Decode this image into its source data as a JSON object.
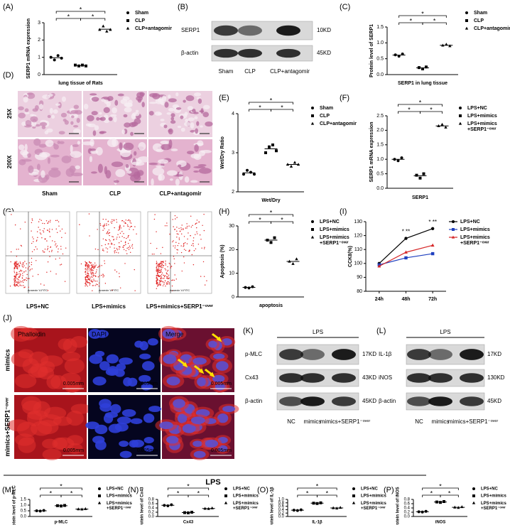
{
  "chart_data": [
    {
      "panel": "(A)",
      "type": "dot",
      "ylabel": "SERP1 mRNA expression",
      "xlabel": "lung tissue of Rats",
      "ylim": [
        0,
        3
      ],
      "yticks": [
        0,
        1,
        2,
        3
      ],
      "significance": [
        "*",
        "*",
        "*"
      ],
      "series": [
        {
          "name": "Sham",
          "marker": "circle",
          "color": "#000000",
          "values": [
            1.0,
            0.85,
            1.1,
            0.95
          ]
        },
        {
          "name": "CLP",
          "marker": "square",
          "color": "#000000",
          "values": [
            0.55,
            0.5,
            0.55,
            0.5
          ]
        },
        {
          "name": "CLP+antagomir",
          "marker": "triangle",
          "color": "#000000",
          "values": [
            2.6,
            2.8,
            2.5,
            2.6
          ]
        }
      ]
    },
    {
      "panel": "(C)",
      "type": "dot",
      "ylabel": "Protein level of SERP1",
      "xlabel": "SERP1 in lung tissue",
      "ylim": [
        0,
        1.5
      ],
      "yticks": [
        {
          "value": 0,
          "label": "0.0"
        },
        0.5,
        {
          "value": 1,
          "label": "1.0"
        },
        1.5
      ],
      "significance": [
        "*",
        "*",
        "*"
      ],
      "series": [
        {
          "name": "Sham",
          "marker": "circle",
          "color": "#000000",
          "values": [
            0.62,
            0.58,
            0.65
          ]
        },
        {
          "name": "CLP",
          "marker": "square",
          "color": "#000000",
          "values": [
            0.22,
            0.18,
            0.24
          ]
        },
        {
          "name": "CLP+antagomir",
          "marker": "triangle",
          "color": "#000000",
          "values": [
            0.92,
            0.95,
            0.9
          ]
        }
      ]
    },
    {
      "panel": "(E)",
      "type": "dot",
      "ylabel": "Wet/Dry Ratio",
      "xlabel": "Wet/Dry",
      "ylim": [
        2,
        4
      ],
      "yticks": [
        2,
        3,
        4
      ],
      "significance": [
        "*",
        "*",
        "*"
      ],
      "series": [
        {
          "name": "Sham",
          "marker": "circle",
          "color": "#000000",
          "values": [
            2.45,
            2.55,
            2.5,
            2.45
          ]
        },
        {
          "name": "CLP",
          "marker": "square",
          "color": "#000000",
          "values": [
            3.0,
            3.15,
            3.2,
            3.05
          ]
        },
        {
          "name": "CLP+antagomir",
          "marker": "triangle",
          "color": "#000000",
          "values": [
            2.7,
            2.65,
            2.75,
            2.7
          ]
        }
      ]
    },
    {
      "panel": "(F)",
      "type": "dot",
      "ylabel": "SERP1 mRNA expression",
      "xlabel": "SERP1",
      "ylim": [
        0,
        2.5
      ],
      "yticks": [
        {
          "value": 0,
          "label": "0.0"
        },
        0.5,
        {
          "value": 1,
          "label": "1.0"
        },
        1.5,
        {
          "value": 2,
          "label": "2.0"
        },
        2.5
      ],
      "significance": [
        "*",
        "*",
        "*"
      ],
      "series": [
        {
          "name": "LPS+NC",
          "marker": "circle",
          "color": "#000000",
          "values": [
            1.0,
            0.95,
            1.05
          ]
        },
        {
          "name": "LPS+mimics",
          "marker": "square",
          "color": "#000000",
          "values": [
            0.45,
            0.35,
            0.5
          ]
        },
        {
          "name": "LPS+mimics +SERP1⁻ᵒᵛᵉʳ",
          "marker": "triangle",
          "color": "#000000",
          "values": [
            2.15,
            2.2,
            2.1
          ]
        }
      ]
    },
    {
      "panel": "(H)",
      "type": "dot",
      "ylabel": "Apoptosis (%)",
      "xlabel": "apoptosis",
      "ylim": [
        0,
        30
      ],
      "yticks": [
        0,
        10,
        20,
        30
      ],
      "significance": [
        "*",
        "*",
        "*"
      ],
      "series": [
        {
          "name": "LPS+NC",
          "marker": "circle",
          "color": "#000000",
          "values": [
            4,
            3.8,
            4.3
          ]
        },
        {
          "name": "LPS+mimics",
          "marker": "square",
          "color": "#000000",
          "values": [
            24,
            23,
            25
          ]
        },
        {
          "name": "LPS+mimics +SERP1⁻ᵒᵛᵉʳ",
          "marker": "triangle",
          "color": "#000000",
          "values": [
            15,
            14,
            16
          ]
        }
      ]
    },
    {
      "panel": "(I)",
      "type": "line",
      "ylabel": "CCK8(%)",
      "categories": [
        "24h",
        "48h",
        "72h"
      ],
      "ylim": [
        80,
        130
      ],
      "yticks": [
        80,
        90,
        100,
        110,
        120,
        130
      ],
      "annotations": [
        {
          "x": "48h",
          "text": "* **"
        },
        {
          "x": "72h",
          "text": "* **"
        }
      ],
      "series": [
        {
          "name": "LPS+NC",
          "marker": "circle",
          "color": "#000000",
          "values": [
            100,
            118,
            125
          ]
        },
        {
          "name": "LPS+mimics",
          "marker": "square",
          "color": "#1f3fbf",
          "values": [
            99,
            104,
            107
          ]
        },
        {
          "name": "LPS+mimics +SERP1⁻ᵒᵛᵉʳ",
          "marker": "triangle",
          "color": "#d62728",
          "values": [
            98,
            108,
            113
          ]
        }
      ]
    },
    {
      "panel": "(M)",
      "type": "dot",
      "ylabel": "Protein level of p-MLC",
      "xlabel": "p-MLC",
      "ylim": [
        0,
        1.5
      ],
      "yticks": [
        {
          "value": 0,
          "label": "0.0"
        },
        0.5,
        {
          "value": 1,
          "label": "1.0"
        },
        1.5
      ],
      "significance": [
        "*",
        "*",
        "*"
      ],
      "series": [
        {
          "name": "LPS+NC",
          "marker": "circle",
          "color": "#000000",
          "values": [
            0.5,
            0.48,
            0.53
          ]
        },
        {
          "name": "LPS+mimics",
          "marker": "square",
          "color": "#000000",
          "values": [
            0.95,
            0.92,
            0.97
          ]
        },
        {
          "name": "LPS+mimics +SERP1⁻ᵒᵛᵉʳ",
          "marker": "triangle",
          "color": "#000000",
          "values": [
            0.65,
            0.63,
            0.67
          ]
        }
      ]
    },
    {
      "panel": "(N)",
      "type": "dot",
      "ylabel": "Protein level of Cx43",
      "xlabel": "Cx43",
      "ylim": [
        0,
        0.8
      ],
      "yticks": [
        {
          "value": 0,
          "label": "0.0"
        },
        0.2,
        0.4,
        0.6,
        0.8
      ],
      "significance": [
        "*",
        "*",
        "*"
      ],
      "series": [
        {
          "name": "LPS+NC",
          "marker": "circle",
          "color": "#000000",
          "values": [
            0.52,
            0.5,
            0.55
          ]
        },
        {
          "name": "LPS+mimics",
          "marker": "square",
          "color": "#000000",
          "values": [
            0.18,
            0.17,
            0.2
          ]
        },
        {
          "name": "LPS+mimics +SERP1⁻ᵒᵛᵉʳ",
          "marker": "triangle",
          "color": "#000000",
          "values": [
            0.37,
            0.36,
            0.39
          ]
        }
      ]
    },
    {
      "panel": "(O)",
      "type": "dot",
      "ylabel": "Protein level of IL-1β",
      "xlabel": "IL-1β",
      "ylim": [
        0,
        1
      ],
      "yticks": [
        {
          "value": 0,
          "label": "0.0"
        },
        0.2,
        0.4,
        0.6,
        0.8,
        {
          "value": 1,
          "label": "1.0"
        }
      ],
      "significance": [
        "*",
        "*",
        "*"
      ],
      "series": [
        {
          "name": "LPS+NC",
          "marker": "circle",
          "color": "#000000",
          "values": [
            0.37,
            0.35,
            0.39
          ]
        },
        {
          "name": "LPS+mimics",
          "marker": "square",
          "color": "#000000",
          "values": [
            0.78,
            0.76,
            0.8
          ]
        },
        {
          "name": "LPS+mimics +SERP1⁻ᵒᵛᵉʳ",
          "marker": "triangle",
          "color": "#000000",
          "values": [
            0.5,
            0.48,
            0.52
          ]
        }
      ]
    },
    {
      "panel": "(P)",
      "type": "dot",
      "ylabel": "Protein level of iNOS",
      "xlabel": "iNOS",
      "ylim": [
        0,
        0.8
      ],
      "yticks": [
        {
          "value": 0,
          "label": "0.0"
        },
        0.2,
        0.4,
        0.6,
        0.8
      ],
      "significance": [
        "*",
        "*",
        "*"
      ],
      "series": [
        {
          "name": "LPS+NC",
          "marker": "circle",
          "color": "#000000",
          "values": [
            0.22,
            0.21,
            0.24
          ]
        },
        {
          "name": "LPS+mimics",
          "marker": "square",
          "color": "#000000",
          "values": [
            0.68,
            0.66,
            0.7
          ]
        },
        {
          "name": "LPS+mimics +SERP1⁻ᵒᵛᵉʳ",
          "marker": "triangle",
          "color": "#000000",
          "values": [
            0.43,
            0.41,
            0.45
          ]
        }
      ]
    }
  ],
  "blots": [
    {
      "panel": "(B)",
      "rows": [
        {
          "label": "SERP1",
          "size": "10KD"
        },
        {
          "label": "β-actin",
          "size": "45KD"
        }
      ],
      "lanes": [
        "Sham",
        "CLP",
        "CLP+antagomir"
      ]
    },
    {
      "panel": "(K)",
      "header": "LPS",
      "rows": [
        {
          "label": "p-MLC",
          "size": "17KD"
        },
        {
          "label": "Cx43",
          "size": "43KD"
        },
        {
          "label": "β-actin",
          "size": "45KD"
        }
      ],
      "lanes": [
        "NC",
        "mimics",
        "mimics+SERP1⁻ᵒᵛᵉʳ"
      ]
    },
    {
      "panel": "(L)",
      "header": "LPS",
      "rows": [
        {
          "label": "IL-1β",
          "size": "17KD"
        },
        {
          "label": "iNOS",
          "size": "130KD"
        },
        {
          "label": "β-actin",
          "size": "45KD"
        }
      ],
      "lanes": [
        "NC",
        "mimics",
        "mimics+SERP1⁻ᵒᵛᵉʳ"
      ]
    }
  ],
  "micrographs": [
    {
      "panel": "(D)",
      "rows": [
        "25X",
        "200X"
      ],
      "columns": [
        "Sham",
        "CLP",
        "CLP+antagomir"
      ]
    },
    {
      "panel": "(G)",
      "columns": [
        "LPS+NC",
        "LPS+mimics",
        "LPS+mimics+SERP1⁻ᵒᵛᵉʳ"
      ],
      "axis_label": "Annexin V-FITC"
    },
    {
      "panel": "(J)",
      "rows": [
        "mimics",
        "mimics+SERP1⁻ᵒᵛᵉʳ"
      ],
      "columns": [
        "Phalloidin",
        "DAPI",
        "Merge"
      ],
      "scale_bar": "0.005mm"
    }
  ],
  "lps_header": "LPS"
}
